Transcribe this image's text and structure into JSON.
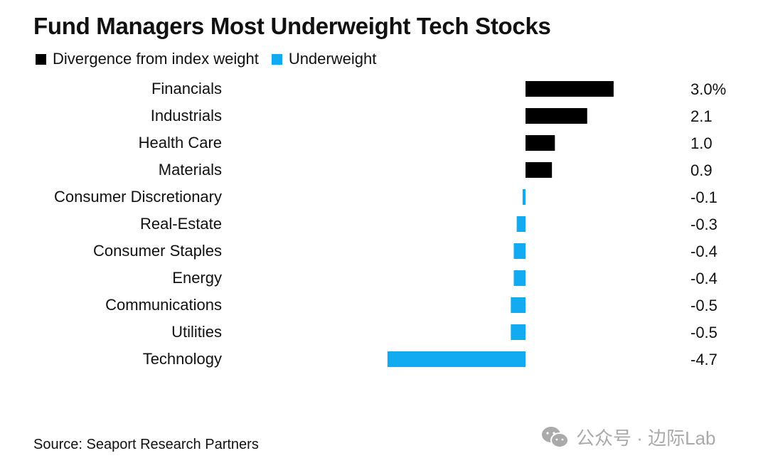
{
  "title": "Fund Managers Most Underweight Tech Stocks",
  "legend": [
    {
      "label": "Divergence from index weight",
      "color": "#000000"
    },
    {
      "label": "Underweight",
      "color": "#12aaf0"
    }
  ],
  "source": "Source: Seaport Research Partners",
  "watermark": "公众号 · 边际Lab",
  "chart_data": {
    "type": "bar",
    "orientation": "horizontal",
    "title": "Fund Managers Most Underweight Tech Stocks",
    "categories": [
      "Financials",
      "Industrials",
      "Health Care",
      "Materials",
      "Consumer Discretionary",
      "Real-Estate",
      "Consumer Staples",
      "Energy",
      "Communications",
      "Utilities",
      "Technology"
    ],
    "values": [
      3.0,
      2.1,
      1.0,
      0.9,
      -0.1,
      -0.3,
      -0.4,
      -0.4,
      -0.5,
      -0.5,
      -4.7
    ],
    "value_labels": [
      "3.0%",
      "2.1",
      "1.0",
      "0.9",
      "-0.1",
      "-0.3",
      "-0.4",
      "-0.4",
      "-0.5",
      "-0.5",
      "-4.7"
    ],
    "positive_color": "#000000",
    "negative_color": "#12aaf0",
    "xlim": [
      -4.7,
      3.0
    ],
    "unit": "%",
    "grid": false
  }
}
